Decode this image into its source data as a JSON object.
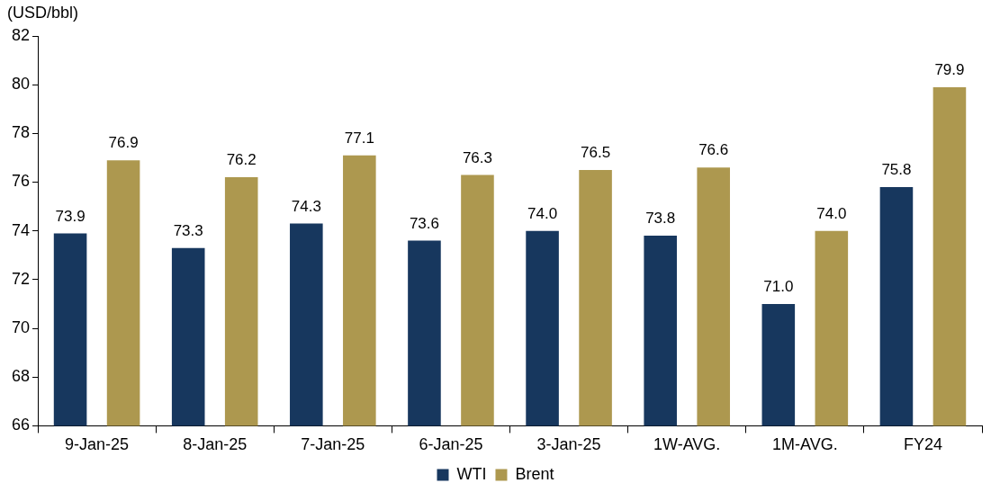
{
  "chart_data": {
    "type": "bar",
    "ylabel": "(USD/bbl)",
    "categories": [
      "9-Jan-25",
      "8-Jan-25",
      "7-Jan-25",
      "6-Jan-25",
      "3-Jan-25",
      "1W-AVG.",
      "1M-AVG.",
      "FY24"
    ],
    "series": [
      {
        "name": "WTI",
        "color": "#17375e",
        "values": [
          73.9,
          73.3,
          74.3,
          73.6,
          74.0,
          73.8,
          71.0,
          75.8
        ],
        "value_labels": [
          "73.9",
          "73.3",
          "74.3",
          "73.6",
          "74.0",
          "73.8",
          "71.0",
          "75.8"
        ]
      },
      {
        "name": "Brent",
        "color": "#ad984f",
        "values": [
          76.9,
          76.2,
          77.1,
          76.3,
          76.5,
          76.6,
          74.0,
          79.9
        ],
        "value_labels": [
          "76.9",
          "76.2",
          "77.1",
          "76.3",
          "76.5",
          "76.6",
          "74.0",
          "79.9"
        ]
      }
    ],
    "ylim": [
      66,
      82
    ],
    "yticks": [
      66,
      68,
      70,
      72,
      74,
      76,
      78,
      80,
      82
    ],
    "grid": false,
    "legend": "bottom"
  }
}
